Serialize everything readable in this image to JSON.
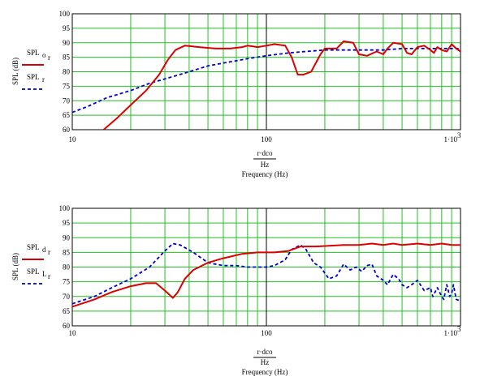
{
  "colors": {
    "grid": "#22c222",
    "red": "#dd0000",
    "blue": "#0000cc",
    "axis": "#000000"
  },
  "chart_data": [
    {
      "type": "line",
      "title": "",
      "xlabel_numer": "r·dco",
      "xlabel_denom": "Hz",
      "xlabel": "Frequency (Hz)",
      "ylabel": "SPL (dB)",
      "xscale": "log",
      "xlim": [
        10,
        1000
      ],
      "ylim": [
        60,
        100
      ],
      "grid": true,
      "x_tick_labels": [
        "10",
        "100",
        "1·10"
      ],
      "x_tick_exp": "3",
      "y_tick_labels": [
        "60",
        "65",
        "70",
        "75",
        "80",
        "85",
        "90",
        "95",
        "100"
      ],
      "legend": [
        {
          "name": "SPL",
          "sub": "o",
          "subsub": "r",
          "style": "solid",
          "color": "red"
        },
        {
          "name": "SPL",
          "sub": "r",
          "subsub": "",
          "style": "dashed",
          "color": "blue"
        }
      ],
      "series": [
        {
          "name": "SPL o r",
          "style": "solid",
          "color": "red",
          "points": [
            [
              14.5,
              60
            ],
            [
              17,
              64
            ],
            [
              20,
              68.5
            ],
            [
              24,
              73.5
            ],
            [
              28,
              79
            ],
            [
              31,
              84
            ],
            [
              34,
              87.5
            ],
            [
              38,
              89
            ],
            [
              45,
              88.5
            ],
            [
              55,
              88
            ],
            [
              65,
              88
            ],
            [
              75,
              88.5
            ],
            [
              80,
              89
            ],
            [
              90,
              88.5
            ],
            [
              100,
              89
            ],
            [
              110,
              89.5
            ],
            [
              125,
              89
            ],
            [
              135,
              85
            ],
            [
              145,
              79
            ],
            [
              155,
              79
            ],
            [
              170,
              80
            ],
            [
              190,
              86
            ],
            [
              200,
              88
            ],
            [
              230,
              88
            ],
            [
              250,
              90.5
            ],
            [
              280,
              90
            ],
            [
              300,
              86
            ],
            [
              330,
              85.5
            ],
            [
              370,
              87
            ],
            [
              400,
              86
            ],
            [
              420,
              88
            ],
            [
              450,
              90
            ],
            [
              500,
              89.5
            ],
            [
              530,
              86.5
            ],
            [
              560,
              86
            ],
            [
              600,
              88.5
            ],
            [
              650,
              89
            ],
            [
              700,
              87.5
            ],
            [
              730,
              86.5
            ],
            [
              760,
              88.5
            ],
            [
              800,
              87.5
            ],
            [
              850,
              87
            ],
            [
              900,
              89.5
            ],
            [
              950,
              88
            ],
            [
              1000,
              87
            ]
          ]
        },
        {
          "name": "SPL r",
          "style": "dashed",
          "color": "blue",
          "points": [
            [
              10,
              66
            ],
            [
              12,
              68
            ],
            [
              15,
              71
            ],
            [
              20,
              73.5
            ],
            [
              25,
              76
            ],
            [
              30,
              77.5
            ],
            [
              40,
              80
            ],
            [
              50,
              82
            ],
            [
              60,
              83
            ],
            [
              80,
              84.5
            ],
            [
              100,
              85.5
            ],
            [
              130,
              86.5
            ],
            [
              160,
              87
            ],
            [
              200,
              87.5
            ],
            [
              250,
              87.5
            ],
            [
              300,
              87.5
            ],
            [
              400,
              87.5
            ],
            [
              500,
              88
            ],
            [
              600,
              88
            ],
            [
              800,
              88
            ],
            [
              1000,
              88
            ]
          ]
        }
      ]
    },
    {
      "type": "line",
      "title": "",
      "xlabel_numer": "r·dco",
      "xlabel_denom": "Hz",
      "xlabel": "Frequency (Hz)",
      "ylabel": "SPL (dB)",
      "xscale": "log",
      "xlim": [
        10,
        1000
      ],
      "ylim": [
        60,
        100
      ],
      "grid": true,
      "x_tick_labels": [
        "10",
        "100",
        "1·10"
      ],
      "x_tick_exp": "3",
      "y_tick_labels": [
        "60",
        "65",
        "70",
        "75",
        "80",
        "85",
        "90",
        "95",
        "100"
      ],
      "legend": [
        {
          "name": "SPL",
          "sub": "d",
          "subsub": "r",
          "style": "solid",
          "color": "red"
        },
        {
          "name": "SPL",
          "sub": "L",
          "subsub": "r",
          "style": "dashed",
          "color": "blue"
        }
      ],
      "series": [
        {
          "name": "SPL d r",
          "style": "solid",
          "color": "red",
          "points": [
            [
              10,
              66.5
            ],
            [
              13,
              69
            ],
            [
              16,
              71.5
            ],
            [
              20,
              73.5
            ],
            [
              24,
              74.5
            ],
            [
              27,
              74.5
            ],
            [
              30,
              72
            ],
            [
              33,
              69.5
            ],
            [
              35,
              71.5
            ],
            [
              38,
              76
            ],
            [
              42,
              79
            ],
            [
              50,
              81.5
            ],
            [
              60,
              83
            ],
            [
              75,
              84.5
            ],
            [
              90,
              85
            ],
            [
              110,
              85
            ],
            [
              130,
              85.5
            ],
            [
              150,
              87
            ],
            [
              180,
              87
            ],
            [
              250,
              87.5
            ],
            [
              300,
              87.5
            ],
            [
              350,
              88
            ],
            [
              400,
              87.5
            ],
            [
              450,
              88
            ],
            [
              500,
              87.5
            ],
            [
              600,
              88
            ],
            [
              700,
              87.5
            ],
            [
              800,
              88
            ],
            [
              900,
              87.5
            ],
            [
              1000,
              87.5
            ]
          ]
        },
        {
          "name": "SPL L r",
          "style": "dashed",
          "color": "blue",
          "points": [
            [
              10,
              67.5
            ],
            [
              13,
              70
            ],
            [
              16,
              73
            ],
            [
              20,
              76
            ],
            [
              25,
              80
            ],
            [
              30,
              85.5
            ],
            [
              33,
              88
            ],
            [
              36,
              87.5
            ],
            [
              42,
              85
            ],
            [
              50,
              81.5
            ],
            [
              60,
              80.5
            ],
            [
              70,
              80.5
            ],
            [
              80,
              80
            ],
            [
              90,
              80
            ],
            [
              100,
              80
            ],
            [
              110,
              80.5
            ],
            [
              125,
              82.5
            ],
            [
              135,
              86
            ],
            [
              150,
              87.5
            ],
            [
              160,
              86
            ],
            [
              175,
              81.5
            ],
            [
              190,
              80
            ],
            [
              210,
              76
            ],
            [
              230,
              77
            ],
            [
              250,
              81
            ],
            [
              270,
              79
            ],
            [
              290,
              80
            ],
            [
              310,
              78.5
            ],
            [
              330,
              80.5
            ],
            [
              350,
              81
            ],
            [
              370,
              77
            ],
            [
              400,
              75.5
            ],
            [
              420,
              74
            ],
            [
              450,
              77.5
            ],
            [
              480,
              76
            ],
            [
              500,
              74
            ],
            [
              530,
              73
            ],
            [
              560,
              74
            ],
            [
              600,
              75.5
            ],
            [
              650,
              72
            ],
            [
              700,
              73
            ],
            [
              720,
              70
            ],
            [
              760,
              73
            ],
            [
              800,
              70
            ],
            [
              820,
              69
            ],
            [
              850,
              74
            ],
            [
              880,
              70
            ],
            [
              900,
              71
            ],
            [
              920,
              74
            ],
            [
              950,
              69
            ],
            [
              1000,
              68.5
            ]
          ]
        }
      ]
    }
  ]
}
